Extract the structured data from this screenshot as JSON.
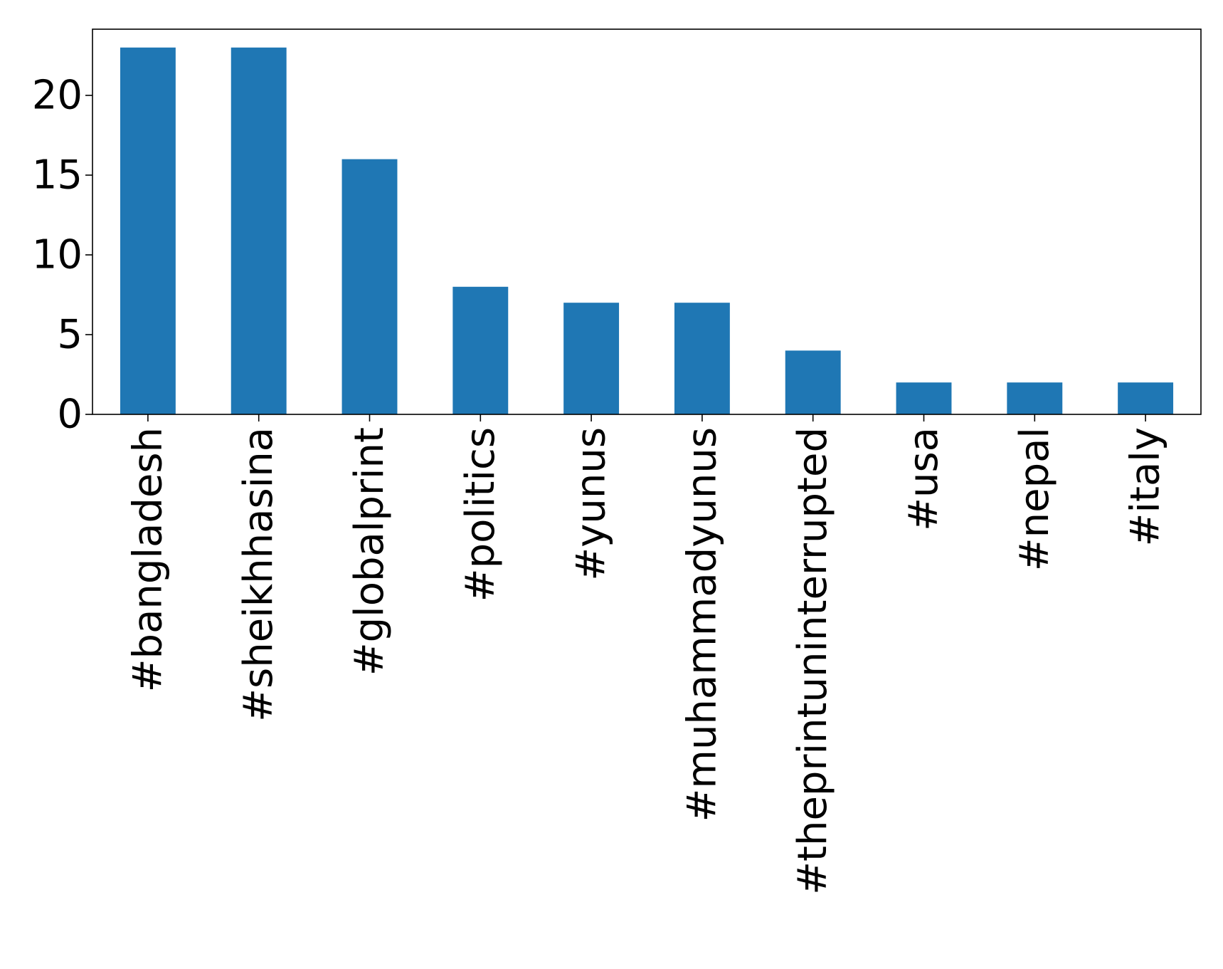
{
  "chart_data": {
    "type": "bar",
    "categories": [
      "#bangladesh",
      "#sheikhhasina",
      "#globalprint",
      "#politics",
      "#yunus",
      "#muhammadyunus",
      "#theprintuninterrupted",
      "#usa",
      "#nepal",
      "#italy"
    ],
    "values": [
      23,
      23,
      16,
      8,
      7,
      7,
      4,
      2,
      2,
      2
    ],
    "title": "",
    "xlabel": "",
    "ylabel": "",
    "ylim": [
      0,
      24.15
    ],
    "yticks": [
      0,
      5,
      10,
      15,
      20
    ],
    "ytick_labels": [
      "0",
      "5",
      "10",
      "15",
      "20"
    ],
    "grid": false,
    "bar_color": "#1f77b4",
    "x_tick_rotation": "vertical"
  }
}
